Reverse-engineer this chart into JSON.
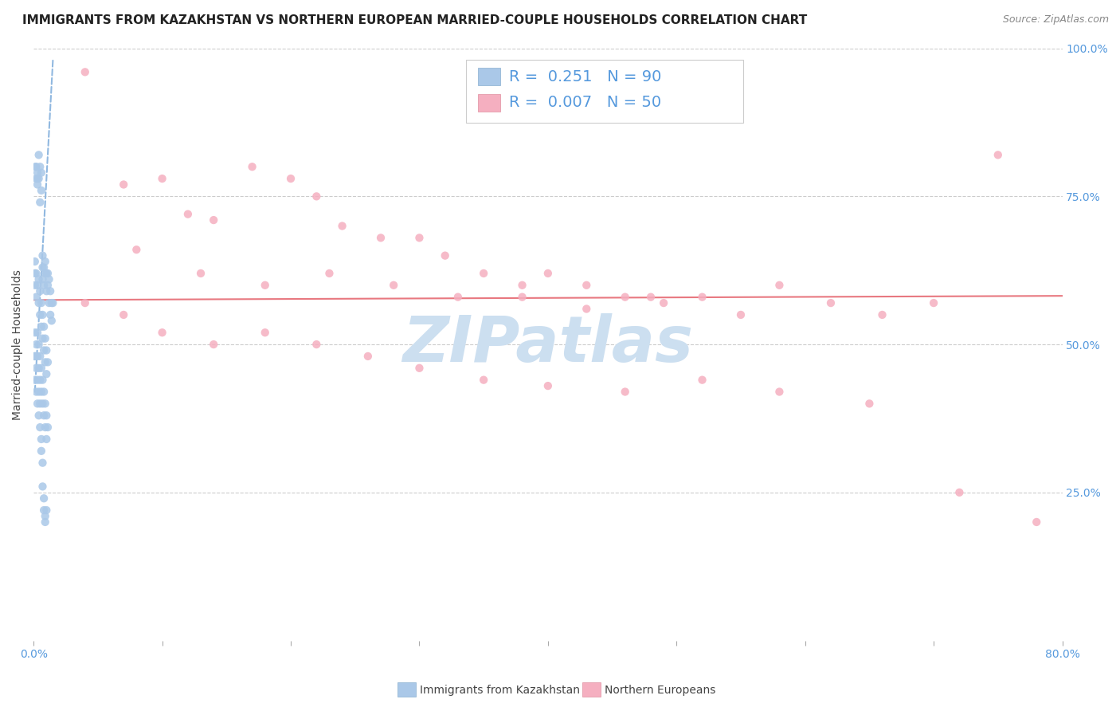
{
  "title": "IMMIGRANTS FROM KAZAKHSTAN VS NORTHERN EUROPEAN MARRIED-COUPLE HOUSEHOLDS CORRELATION CHART",
  "source": "Source: ZipAtlas.com",
  "ylabel": "Married-couple Households",
  "xlim": [
    0.0,
    0.8
  ],
  "ylim": [
    0.0,
    1.0
  ],
  "ytick_positions": [
    0.0,
    0.25,
    0.5,
    0.75,
    1.0
  ],
  "ytick_labels_right": [
    "",
    "25.0%",
    "50.0%",
    "75.0%",
    "100.0%"
  ],
  "xtick_positions": [
    0.0,
    0.1,
    0.2,
    0.3,
    0.4,
    0.5,
    0.6,
    0.7,
    0.8
  ],
  "blue_R": 0.251,
  "blue_N": 90,
  "pink_R": 0.007,
  "pink_N": 50,
  "blue_color": "#aac8e8",
  "pink_color": "#f5afc0",
  "blue_line_color": "#90b8e0",
  "pink_line_color": "#e87880",
  "watermark": "ZIPatlas",
  "watermark_color": "#ccdff0",
  "grid_color": "#cccccc",
  "tick_color": "#5599dd",
  "title_fontsize": 11,
  "ylabel_fontsize": 10,
  "tick_fontsize": 10,
  "legend_fontsize": 14,
  "source_fontsize": 9,
  "blue_scatter_x": [
    0.001,
    0.0015,
    0.002,
    0.002,
    0.003,
    0.003,
    0.003,
    0.004,
    0.004,
    0.005,
    0.005,
    0.006,
    0.006,
    0.007,
    0.007,
    0.007,
    0.008,
    0.008,
    0.009,
    0.009,
    0.01,
    0.01,
    0.011,
    0.011,
    0.012,
    0.012,
    0.013,
    0.013,
    0.014,
    0.014,
    0.001,
    0.001,
    0.002,
    0.002,
    0.003,
    0.004,
    0.004,
    0.005,
    0.005,
    0.006,
    0.006,
    0.007,
    0.007,
    0.008,
    0.008,
    0.009,
    0.009,
    0.01,
    0.01,
    0.011,
    0.001,
    0.001,
    0.002,
    0.003,
    0.003,
    0.004,
    0.004,
    0.005,
    0.005,
    0.006,
    0.006,
    0.007,
    0.007,
    0.008,
    0.008,
    0.009,
    0.009,
    0.01,
    0.01,
    0.011,
    0.001,
    0.001,
    0.002,
    0.002,
    0.003,
    0.003,
    0.004,
    0.004,
    0.005,
    0.005,
    0.006,
    0.006,
    0.007,
    0.007,
    0.008,
    0.008,
    0.009,
    0.009,
    0.01,
    0.015
  ],
  "blue_scatter_y": [
    0.62,
    0.8,
    0.8,
    0.78,
    0.79,
    0.77,
    0.78,
    0.82,
    0.78,
    0.8,
    0.74,
    0.79,
    0.76,
    0.65,
    0.63,
    0.61,
    0.63,
    0.6,
    0.62,
    0.64,
    0.62,
    0.59,
    0.6,
    0.62,
    0.61,
    0.57,
    0.59,
    0.55,
    0.57,
    0.54,
    0.64,
    0.6,
    0.62,
    0.58,
    0.6,
    0.61,
    0.57,
    0.59,
    0.55,
    0.57,
    0.53,
    0.55,
    0.51,
    0.53,
    0.49,
    0.51,
    0.47,
    0.49,
    0.45,
    0.47,
    0.52,
    0.48,
    0.5,
    0.52,
    0.48,
    0.5,
    0.46,
    0.48,
    0.44,
    0.46,
    0.42,
    0.44,
    0.4,
    0.42,
    0.38,
    0.4,
    0.36,
    0.38,
    0.34,
    0.36,
    0.48,
    0.44,
    0.46,
    0.42,
    0.44,
    0.4,
    0.42,
    0.38,
    0.4,
    0.36,
    0.32,
    0.34,
    0.3,
    0.26,
    0.24,
    0.22,
    0.21,
    0.2,
    0.22,
    0.57
  ],
  "pink_scatter_x": [
    0.04,
    0.07,
    0.1,
    0.12,
    0.14,
    0.17,
    0.2,
    0.22,
    0.24,
    0.27,
    0.3,
    0.32,
    0.35,
    0.38,
    0.4,
    0.43,
    0.46,
    0.49,
    0.52,
    0.55,
    0.58,
    0.62,
    0.66,
    0.7,
    0.75,
    0.08,
    0.13,
    0.18,
    0.23,
    0.28,
    0.33,
    0.38,
    0.43,
    0.48,
    0.04,
    0.07,
    0.1,
    0.14,
    0.18,
    0.22,
    0.26,
    0.3,
    0.35,
    0.4,
    0.46,
    0.52,
    0.58,
    0.65,
    0.72,
    0.78
  ],
  "pink_scatter_y": [
    0.96,
    0.77,
    0.78,
    0.72,
    0.71,
    0.8,
    0.78,
    0.75,
    0.7,
    0.68,
    0.68,
    0.65,
    0.62,
    0.6,
    0.62,
    0.6,
    0.58,
    0.57,
    0.58,
    0.55,
    0.6,
    0.57,
    0.55,
    0.57,
    0.82,
    0.66,
    0.62,
    0.6,
    0.62,
    0.6,
    0.58,
    0.58,
    0.56,
    0.58,
    0.57,
    0.55,
    0.52,
    0.5,
    0.52,
    0.5,
    0.48,
    0.46,
    0.44,
    0.43,
    0.42,
    0.44,
    0.42,
    0.4,
    0.25,
    0.2
  ],
  "pink_regression_y_at_x0": 0.575,
  "pink_regression_y_at_x80": 0.582,
  "blue_regression_x0": 0.001,
  "blue_regression_y0": 0.42,
  "blue_regression_x1": 0.015,
  "blue_regression_y1": 0.98
}
